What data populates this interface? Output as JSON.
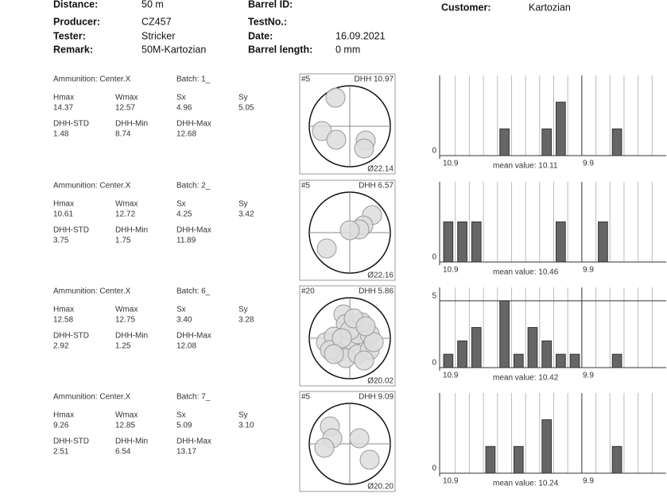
{
  "header": {
    "fields": [
      {
        "label": "Distance:",
        "value": "50 m"
      },
      {
        "label": "Barrel ID:",
        "value": ""
      },
      {
        "label": "Customer:",
        "value": "Kartozian"
      },
      {
        "label": "Producer:",
        "value": "CZ457"
      },
      {
        "label": "TestNo.:",
        "value": ""
      },
      {
        "label": "Tester:",
        "value": "Stricker"
      },
      {
        "label": "Date:",
        "value": "16.09.2021"
      },
      {
        "label": "Remark:",
        "value": "50M-Kartozian"
      },
      {
        "label": "Barrel length:",
        "value": "0 mm"
      }
    ]
  },
  "rows": [
    {
      "ammunition": "Ammunition: Center.X",
      "batch": "Batch: 1_",
      "stats": [
        [
          "Hmax",
          "14.37"
        ],
        [
          "Wmax",
          "12.57"
        ],
        [
          "Sx",
          "4.96"
        ],
        [
          "Sy",
          "5.05"
        ],
        [
          "DHH-STD",
          "1.48"
        ],
        [
          "DHH-Min",
          "8.74"
        ],
        [
          "DHH-Max",
          "12.68"
        ]
      ],
      "target": {
        "shots": "#5",
        "dhh": "DHH 10.97",
        "diameter": "Ø22.14"
      },
      "histogram": {
        "counts": [
          0,
          0,
          0,
          0,
          1,
          0,
          0,
          1,
          2,
          0,
          0,
          0,
          1,
          0,
          0,
          0
        ],
        "ylim": [
          0,
          3
        ],
        "yticks": [
          0
        ],
        "left_label": "10.9",
        "mean": "mean value: 10.11",
        "right_label": "9.9"
      }
    },
    {
      "ammunition": "Ammunition: Center.X",
      "batch": "Batch: 2_",
      "stats": [
        [
          "Hmax",
          "10.61"
        ],
        [
          "Wmax",
          "12.72"
        ],
        [
          "Sx",
          "4.25"
        ],
        [
          "Sy",
          "3.42"
        ],
        [
          "DHH-STD",
          "3.75"
        ],
        [
          "DHH-Min",
          "1.75"
        ],
        [
          "DHH-Max",
          "11.89"
        ]
      ],
      "target": {
        "shots": "#5",
        "dhh": "DHH 6.57",
        "diameter": "Ø22.16"
      },
      "histogram": {
        "counts": [
          1,
          1,
          1,
          0,
          0,
          0,
          0,
          0,
          1,
          0,
          0,
          1,
          0,
          0,
          0,
          0
        ],
        "ylim": [
          0,
          2
        ],
        "yticks": [
          0
        ],
        "left_label": "10.9",
        "mean": "mean value: 10.46",
        "right_label": "9.9"
      }
    },
    {
      "ammunition": "Ammunition: Center.X",
      "batch": "Batch: 6_",
      "stats": [
        [
          "Hmax",
          "12.58"
        ],
        [
          "Wmax",
          "12.75"
        ],
        [
          "Sx",
          "3.40"
        ],
        [
          "Sy",
          "3.28"
        ],
        [
          "DHH-STD",
          "2.92"
        ],
        [
          "DHH-Min",
          "1.25"
        ],
        [
          "DHH-Max",
          "12.08"
        ]
      ],
      "target": {
        "shots": "#20",
        "dhh": "DHH 5.86",
        "diameter": "Ø20.02"
      },
      "histogram": {
        "counts": [
          1,
          2,
          3,
          0,
          5,
          1,
          3,
          2,
          1,
          1,
          0,
          0,
          1,
          0,
          0,
          0
        ],
        "ylim": [
          0,
          6
        ],
        "yticks": [
          0,
          5
        ],
        "left_label": "10.9",
        "mean": "mean value: 10.42",
        "right_label": "9.9"
      }
    },
    {
      "ammunition": "Ammunition: Center.X",
      "batch": "Batch: 7_",
      "stats": [
        [
          "Hmax",
          "9.26"
        ],
        [
          "Wmax",
          "12.85"
        ],
        [
          "Sx",
          "5.09"
        ],
        [
          "Sy",
          "3.10"
        ],
        [
          "DHH-STD",
          "2.51"
        ],
        [
          "DHH-Min",
          "6.54"
        ],
        [
          "DHH-Max",
          "13.17"
        ]
      ],
      "target": {
        "shots": "#5",
        "dhh": "DHH 9.09",
        "diameter": "Ø20.20"
      },
      "histogram": {
        "counts": [
          0,
          0,
          0,
          1,
          0,
          1,
          0,
          2,
          0,
          0,
          0,
          0,
          1,
          0,
          0,
          0
        ],
        "ylim": [
          0,
          3
        ],
        "yticks": [
          0
        ],
        "left_label": "10.9",
        "mean": "mean value: 10.24",
        "right_label": "9.9"
      }
    }
  ]
}
